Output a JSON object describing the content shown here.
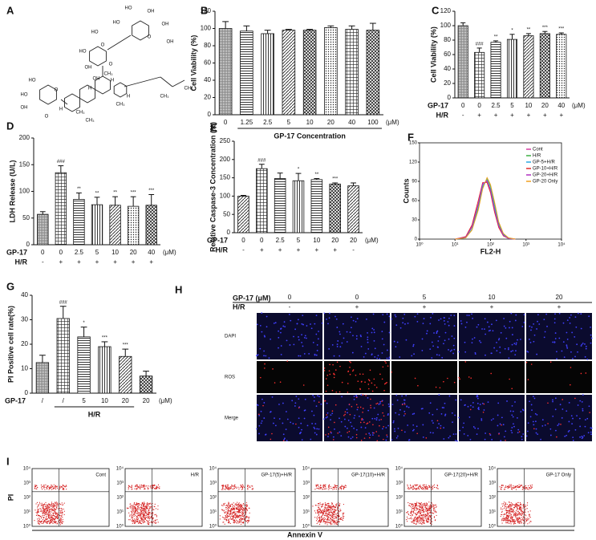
{
  "chart_data": [
    {
      "type": "bar",
      "label": "B",
      "ylabel": "Cell Viability (%)",
      "categories": [
        "0",
        "1.25",
        "2.5",
        "5",
        "10",
        "20",
        "40",
        "100"
      ],
      "unit": "(μM)",
      "xlabel": "GP-17 Concentration",
      "values": [
        100,
        97,
        94,
        98,
        98,
        101,
        99,
        98
      ],
      "errors": [
        8,
        6,
        4,
        1,
        1,
        2,
        4,
        8
      ],
      "ylim": [
        0,
        120
      ],
      "yticks": [
        0,
        20,
        40,
        60,
        80,
        100,
        120
      ]
    },
    {
      "type": "bar",
      "label": "C",
      "ylabel": "Cell Viability (%)",
      "category_name": "GP-17",
      "categories": [
        "0",
        "0",
        "2.5",
        "5",
        "10",
        "20",
        "40"
      ],
      "unit": "(μM)",
      "hr_name": "H/R",
      "hr": [
        "-",
        "+",
        "+",
        "+",
        "+",
        "+",
        "+"
      ],
      "values": [
        100,
        63,
        77,
        81,
        86,
        89,
        88
      ],
      "errors": [
        4,
        6,
        2,
        7,
        3,
        3,
        2
      ],
      "annotations": [
        null,
        "###",
        "**",
        "*",
        "**",
        "***",
        "***"
      ],
      "ylim": [
        0,
        120
      ],
      "yticks": [
        0,
        20,
        40,
        60,
        80,
        100,
        120
      ]
    },
    {
      "type": "bar",
      "label": "D",
      "ylabel": "LDH Release (U/L)",
      "category_name": "GP-17",
      "categories": [
        "0",
        "0",
        "2.5",
        "5",
        "10",
        "20",
        "40"
      ],
      "unit": "(μM)",
      "hr_name": "H/R",
      "hr": [
        "-",
        "+",
        "+",
        "+",
        "+",
        "+",
        "+"
      ],
      "values": [
        57,
        135,
        85,
        75,
        74,
        72,
        74
      ],
      "errors": [
        5,
        13,
        12,
        14,
        16,
        18,
        20
      ],
      "annotations": [
        null,
        "###",
        "**",
        "**",
        "**",
        "***",
        "***"
      ],
      "ylim": [
        0,
        200
      ],
      "yticks": [
        0,
        50,
        100,
        150,
        200
      ]
    },
    {
      "type": "bar",
      "label": "E",
      "ylabel": "Relative Caspase-3 Concentration (%)",
      "category_name": "GP-17",
      "categories": [
        "0",
        "0",
        "2.5",
        "5",
        "10",
        "20",
        "20"
      ],
      "unit": "(μM)",
      "hr_name": "H/R",
      "hr": [
        "-",
        "+",
        "+",
        "+",
        "+",
        "+",
        "-"
      ],
      "values": [
        100,
        175,
        148,
        142,
        145,
        133,
        128
      ],
      "errors": [
        2,
        12,
        15,
        20,
        3,
        3,
        8
      ],
      "annotations": [
        null,
        "###",
        null,
        "*",
        "**",
        "***",
        null
      ],
      "ylim": [
        0,
        250
      ],
      "yticks": [
        0,
        50,
        100,
        150,
        200,
        250
      ]
    },
    {
      "type": "line",
      "label": "F",
      "ylabel": "Counts",
      "xlabel": "FL2-H",
      "xscale": "log",
      "x": [
        10,
        20,
        30,
        45,
        60,
        80,
        100,
        130,
        170,
        230,
        320,
        500
      ],
      "series": [
        {
          "name": "Cont",
          "color": "#d63aa0",
          "values": [
            0,
            3,
            20,
            55,
            85,
            90,
            75,
            45,
            20,
            6,
            1,
            0
          ]
        },
        {
          "name": "H/R",
          "color": "#3cb043",
          "values": [
            0,
            2,
            15,
            48,
            80,
            95,
            82,
            55,
            25,
            8,
            2,
            0
          ]
        },
        {
          "name": "GP-5+H/R",
          "color": "#2aa7e0",
          "values": [
            0,
            3,
            18,
            52,
            83,
            92,
            78,
            50,
            22,
            7,
            1,
            0
          ]
        },
        {
          "name": "GP-10+H/R",
          "color": "#e02a2a",
          "values": [
            0,
            4,
            22,
            60,
            88,
            88,
            72,
            42,
            18,
            5,
            1,
            0
          ]
        },
        {
          "name": "GP-20+H/R",
          "color": "#b030c0",
          "values": [
            0,
            3,
            19,
            54,
            86,
            91,
            76,
            46,
            21,
            6,
            1,
            0
          ]
        },
        {
          "name": "GP-20 Only",
          "color": "#f0a020",
          "values": [
            0,
            2,
            14,
            45,
            78,
            96,
            85,
            58,
            27,
            9,
            2,
            0
          ]
        }
      ],
      "xlim": [
        1,
        10000
      ],
      "xticks": [
        {
          "value": 1,
          "label": "10⁰"
        },
        {
          "value": 10,
          "label": "10¹"
        },
        {
          "value": 100,
          "label": "10²"
        },
        {
          "value": 1000,
          "label": "10³"
        },
        {
          "value": 10000,
          "label": "10⁴"
        }
      ],
      "ylim": [
        0,
        150
      ],
      "yticks": [
        0,
        30,
        60,
        90,
        120,
        150
      ]
    },
    {
      "type": "bar",
      "label": "G",
      "ylabel": "PI Positive cell rate(%)",
      "category_name": "GP-17",
      "categories": [
        "/",
        "/",
        "5",
        "10",
        "20",
        "20"
      ],
      "unit": "(μM)",
      "group_label": "H/R",
      "values": [
        12.5,
        30.5,
        23,
        19,
        15,
        7
      ],
      "errors": [
        3,
        5,
        4,
        2,
        3,
        2
      ],
      "annotations": [
        null,
        "###",
        "*",
        "***",
        "***",
        null
      ],
      "ylim": [
        0,
        40
      ],
      "yticks": [
        0,
        10,
        20,
        30,
        40
      ]
    }
  ],
  "panel_a": {
    "label": "A",
    "atoms": [
      "HO",
      "OH",
      "HO",
      "OH",
      "O",
      "OH",
      "HO",
      "O",
      "HO",
      "OH",
      "O",
      "OH",
      "H",
      "CH₃",
      "H",
      "CH₃",
      "HO",
      "HO",
      "OH",
      "O",
      "O",
      "H",
      "CH₃",
      "CH₃",
      "CH₃",
      "H",
      "CH₃"
    ]
  },
  "panel_h": {
    "label": "H",
    "dose_name": "GP-17 (μM)",
    "doses": [
      "0",
      "0",
      "5",
      "10",
      "20"
    ],
    "hr_name": "H/R",
    "hr": [
      "-",
      "+",
      "+",
      "+",
      "+"
    ],
    "rows": [
      "DAPI",
      "ROS",
      "Merge"
    ]
  },
  "panel_i": {
    "label": "I",
    "ylabel": "PI",
    "xlabel": "Annexin V",
    "plots": [
      "Cont",
      "H/R",
      "GP-17(5)+H/R",
      "GP-17(10)+H/R",
      "GP-17(20)+H/R",
      "GP-17 Only"
    ],
    "ticks": [
      "10⁰",
      "10¹",
      "10²",
      "10³",
      "10⁴"
    ]
  }
}
